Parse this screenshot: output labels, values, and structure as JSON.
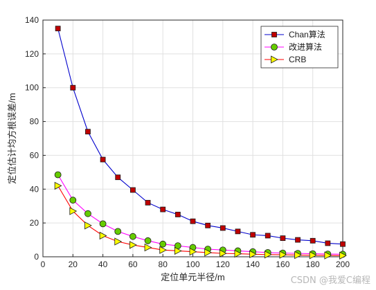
{
  "chart_data": {
    "type": "line",
    "xlabel": "定位单元半径/m",
    "ylabel": "定位估计均方根误差/m",
    "xlim": [
      0,
      200
    ],
    "ylim": [
      0,
      140
    ],
    "xticks": [
      0,
      20,
      40,
      60,
      80,
      100,
      120,
      140,
      160,
      180,
      200
    ],
    "yticks": [
      0,
      20,
      40,
      60,
      80,
      100,
      120,
      140
    ],
    "grid": true,
    "legend_position": "top-right",
    "x": [
      10,
      20,
      30,
      40,
      50,
      60,
      70,
      80,
      90,
      100,
      110,
      120,
      130,
      140,
      150,
      160,
      170,
      180,
      190,
      200
    ],
    "series": [
      {
        "name": "Chan算法",
        "color": "#0000cc",
        "marker": "square",
        "marker_color": "#c00000",
        "values": [
          135,
          100,
          74,
          57.5,
          47,
          39.5,
          32,
          28,
          25,
          21,
          18.5,
          17,
          15,
          13,
          12.5,
          11,
          10,
          9.5,
          8,
          7.5
        ]
      },
      {
        "name": "改进算法",
        "color": "#ff00ff",
        "marker": "circle",
        "marker_color": "#66cc00",
        "values": [
          48.5,
          33.5,
          25.5,
          19.5,
          15,
          12,
          9.5,
          7.5,
          6.5,
          5.5,
          4.5,
          4,
          3.5,
          3,
          2.5,
          2.2,
          2,
          1.8,
          1.6,
          1.5
        ]
      },
      {
        "name": "CRB",
        "color": "#ff0000",
        "marker": "triangle-right",
        "marker_color": "#ffff00",
        "values": [
          42,
          27,
          18.5,
          12.5,
          9,
          7,
          5.5,
          4,
          3.5,
          3,
          2.5,
          2,
          1.8,
          1.5,
          1.3,
          1.2,
          1,
          0.9,
          0.8,
          0.7
        ]
      }
    ]
  },
  "watermark": "CSDN @我爱C编程"
}
